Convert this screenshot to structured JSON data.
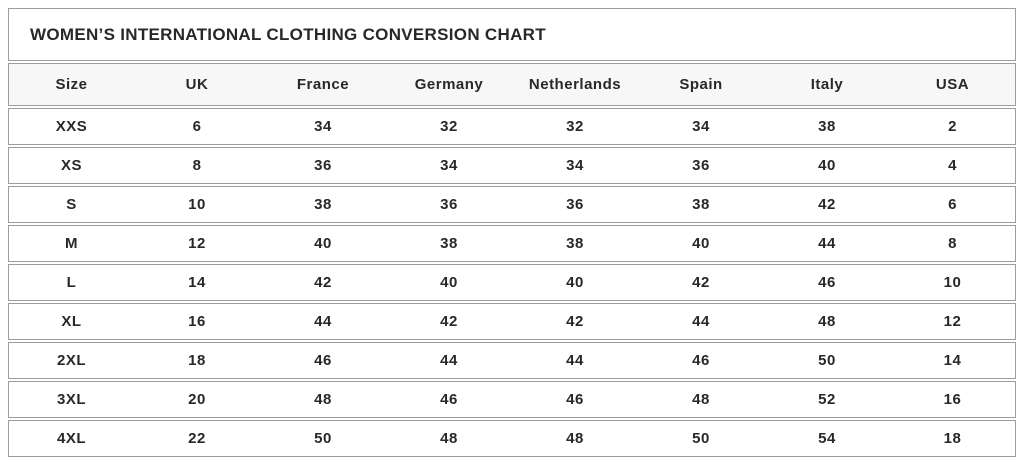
{
  "page": {
    "title": "WOMEN’S INTERNATIONAL CLOTHING CONVERSION CHART"
  },
  "chart_data": {
    "type": "table",
    "title": "WOMEN’S INTERNATIONAL CLOTHING CONVERSION CHART",
    "columns": [
      "Size",
      "UK",
      "France",
      "Germany",
      "Netherlands",
      "Spain",
      "Italy",
      "USA"
    ],
    "rows": [
      [
        "XXS",
        "6",
        "34",
        "32",
        "32",
        "34",
        "38",
        "2"
      ],
      [
        "XS",
        "8",
        "36",
        "34",
        "34",
        "36",
        "40",
        "4"
      ],
      [
        "S",
        "10",
        "38",
        "36",
        "36",
        "38",
        "42",
        "6"
      ],
      [
        "M",
        "12",
        "40",
        "38",
        "38",
        "40",
        "44",
        "8"
      ],
      [
        "L",
        "14",
        "42",
        "40",
        "40",
        "42",
        "46",
        "10"
      ],
      [
        "XL",
        "16",
        "44",
        "42",
        "42",
        "44",
        "48",
        "12"
      ],
      [
        "2XL",
        "18",
        "46",
        "44",
        "44",
        "46",
        "50",
        "14"
      ],
      [
        "3XL",
        "20",
        "48",
        "46",
        "46",
        "48",
        "52",
        "16"
      ],
      [
        "4XL",
        "22",
        "50",
        "48",
        "48",
        "50",
        "54",
        "18"
      ]
    ],
    "colors": {
      "text": "#26282c",
      "border": "#9c9c9c",
      "header_background": "#f7f7f7",
      "row_background": "#ffffff"
    }
  }
}
